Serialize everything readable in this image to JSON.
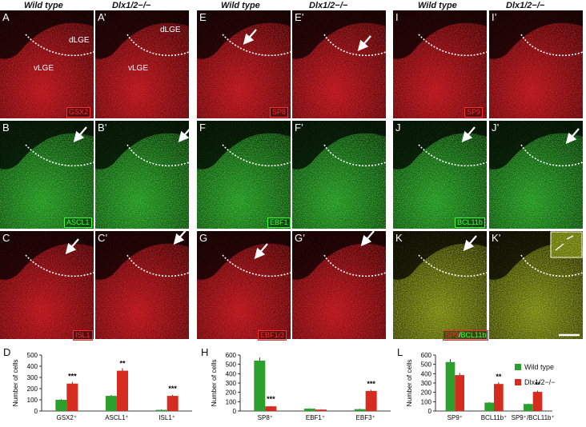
{
  "headers": {
    "wt": "Wild type",
    "ko": "Dlx1/2−/−"
  },
  "colors": {
    "wt": "#2ca02c",
    "ko": "#d62b1f",
    "red": "#c8101a",
    "green": "#2bb52b"
  },
  "panels": {
    "A": "A",
    "A2": "A’",
    "B": "B",
    "B2": "B’",
    "C": "C",
    "C2": "C’",
    "E": "E",
    "E2": "E’",
    "F": "F",
    "F2": "F’",
    "G": "G",
    "G2": "G’",
    "I": "I",
    "I2": "I’",
    "J": "J",
    "J2": "J’",
    "K": "K",
    "K2": "K’",
    "D": "D",
    "H": "H",
    "L": "L"
  },
  "regions": {
    "dlge": "dLGE",
    "vlge": "vLGE"
  },
  "stains": {
    "A": "GSX2",
    "B": "ASCL1",
    "C": "ISL1",
    "E": "SP8",
    "F": "EBF1",
    "G": "EBF1/3",
    "I": "SP9",
    "J": "BCL11b",
    "K_red": "SP9",
    "K_sep": "/",
    "K_green": "BCL11b"
  },
  "legend": {
    "wt": "Wild type",
    "ko": "Dlx1/2−/−"
  },
  "chart_data": [
    {
      "type": "bar",
      "panel": "D",
      "ylabel": "Number of cells",
      "ylim": [
        0,
        500
      ],
      "yticks": [
        0,
        100,
        200,
        300,
        400,
        500
      ],
      "categories": [
        "GSX2⁺",
        "ASCL1⁺",
        "ISL1⁺"
      ],
      "series": [
        {
          "name": "Wild type",
          "values": [
            100,
            135,
            10
          ]
        },
        {
          "name": "Dlx1/2−/−",
          "values": [
            245,
            360,
            135
          ]
        }
      ],
      "annotations": [
        "***",
        "**",
        "***"
      ]
    },
    {
      "type": "bar",
      "panel": "H",
      "ylabel": "Number of cells",
      "ylim": [
        0,
        600
      ],
      "yticks": [
        0,
        100,
        200,
        300,
        400,
        500,
        600
      ],
      "categories": [
        "SP8⁺",
        "EBF1⁺",
        "EBF3⁺"
      ],
      "series": [
        {
          "name": "Wild type",
          "values": [
            540,
            25,
            20
          ]
        },
        {
          "name": "Dlx1/2−/−",
          "values": [
            50,
            15,
            215
          ]
        }
      ],
      "annotations": [
        "***",
        "",
        "***"
      ]
    },
    {
      "type": "bar",
      "panel": "L",
      "ylabel": "Number of cells",
      "ylim": [
        0,
        600
      ],
      "yticks": [
        0,
        100,
        200,
        300,
        400,
        500,
        600
      ],
      "categories": [
        "SP9⁺",
        "BCL11b⁺",
        "SP9⁺/BCL11b⁺"
      ],
      "series": [
        {
          "name": "Wild type",
          "values": [
            525,
            90,
            75
          ]
        },
        {
          "name": "Dlx1/2−/−",
          "values": [
            385,
            290,
            205
          ]
        }
      ],
      "annotations": [
        "",
        "**",
        "**"
      ]
    }
  ]
}
